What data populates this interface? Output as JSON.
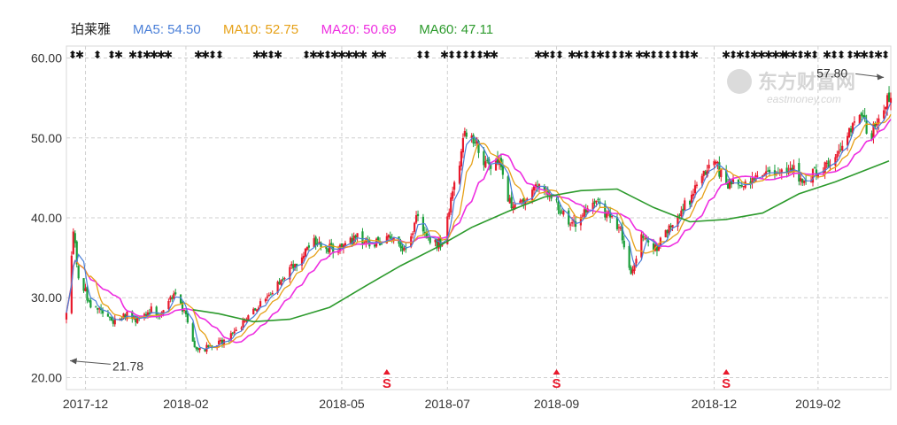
{
  "chart_data": {
    "type": "candlestick",
    "title": "",
    "stock_name": "珀莱雅",
    "legend": [
      {
        "key": "ma5",
        "label": "MA5: 54.50",
        "color": "#4a7fd8"
      },
      {
        "key": "ma10",
        "label": "MA10: 52.75",
        "color": "#e6a118"
      },
      {
        "key": "ma20",
        "label": "MA20: 50.69",
        "color": "#ee2ee0"
      },
      {
        "key": "ma60",
        "label": "MA60: 47.11",
        "color": "#2c9a2c"
      }
    ],
    "ylim": [
      18.5,
      61.5
    ],
    "yticks": [
      {
        "value": 60,
        "label": "60.00"
      },
      {
        "value": 50,
        "label": "50.00"
      },
      {
        "value": 40,
        "label": "40.00"
      },
      {
        "value": 30,
        "label": "30.00"
      },
      {
        "value": 20,
        "label": "20.00"
      }
    ],
    "xlim": [
      "2017-11-24",
      "2019-03-15"
    ],
    "xticks": [
      {
        "date": "2017-12-05",
        "label": "2017-12"
      },
      {
        "date": "2018-02-01",
        "label": "2018-02"
      },
      {
        "date": "2018-05-02",
        "label": "2018-05"
      },
      {
        "date": "2018-07-02",
        "label": "2018-07"
      },
      {
        "date": "2018-09-03",
        "label": "2018-09"
      },
      {
        "date": "2018-12-03",
        "label": "2018-12"
      },
      {
        "date": "2019-02-01",
        "label": "2019-02"
      }
    ],
    "close_anchors": [
      [
        "2017-11-24",
        28.5
      ],
      [
        "2017-11-28",
        38.0
      ],
      [
        "2017-12-01",
        33.0
      ],
      [
        "2017-12-08",
        29.0
      ],
      [
        "2017-12-15",
        28.0
      ],
      [
        "2017-12-22",
        27.0
      ],
      [
        "2017-12-29",
        27.8
      ],
      [
        "2018-01-05",
        27.2
      ],
      [
        "2018-01-12",
        28.5
      ],
      [
        "2018-01-19",
        28.0
      ],
      [
        "2018-01-26",
        30.8
      ],
      [
        "2018-02-02",
        27.0
      ],
      [
        "2018-02-07",
        23.2
      ],
      [
        "2018-02-12",
        23.6
      ],
      [
        "2018-02-26",
        25.0
      ],
      [
        "2018-03-09",
        27.5
      ],
      [
        "2018-03-23",
        31.0
      ],
      [
        "2018-04-04",
        34.0
      ],
      [
        "2018-04-16",
        36.8
      ],
      [
        "2018-04-27",
        36.0
      ],
      [
        "2018-05-10",
        37.5
      ],
      [
        "2018-05-22",
        36.8
      ],
      [
        "2018-06-01",
        37.5
      ],
      [
        "2018-06-08",
        35.8
      ],
      [
        "2018-06-15",
        40.5
      ],
      [
        "2018-06-22",
        36.5
      ],
      [
        "2018-06-29",
        37.0
      ],
      [
        "2018-07-06",
        44.0
      ],
      [
        "2018-07-12",
        50.5
      ],
      [
        "2018-07-18",
        49.5
      ],
      [
        "2018-07-25",
        46.5
      ],
      [
        "2018-08-01",
        47.2
      ],
      [
        "2018-08-08",
        41.0
      ],
      [
        "2018-08-15",
        42.5
      ],
      [
        "2018-08-22",
        44.5
      ],
      [
        "2018-08-29",
        43.5
      ],
      [
        "2018-09-05",
        41.2
      ],
      [
        "2018-09-12",
        39.0
      ],
      [
        "2018-09-19",
        40.8
      ],
      [
        "2018-09-26",
        41.8
      ],
      [
        "2018-10-10",
        38.5
      ],
      [
        "2018-10-16",
        32.8
      ],
      [
        "2018-10-22",
        37.5
      ],
      [
        "2018-10-29",
        35.8
      ],
      [
        "2018-11-05",
        38.2
      ],
      [
        "2018-11-12",
        40.5
      ],
      [
        "2018-11-19",
        42.2
      ],
      [
        "2018-11-26",
        45.2
      ],
      [
        "2018-12-03",
        47.2
      ],
      [
        "2018-12-10",
        44.0
      ],
      [
        "2018-12-17",
        44.8
      ],
      [
        "2018-12-24",
        44.2
      ],
      [
        "2019-01-02",
        46.5
      ],
      [
        "2019-01-09",
        45.0
      ],
      [
        "2019-01-16",
        46.5
      ],
      [
        "2019-01-23",
        44.2
      ],
      [
        "2019-01-30",
        45.8
      ],
      [
        "2019-02-11",
        47.0
      ],
      [
        "2019-02-18",
        50.0
      ],
      [
        "2019-02-25",
        52.5
      ],
      [
        "2019-03-04",
        50.5
      ],
      [
        "2019-03-11",
        53.5
      ],
      [
        "2019-03-14",
        55.0
      ]
    ],
    "ma60_anchors": [
      [
        "2018-02-05",
        28.5
      ],
      [
        "2018-02-20",
        28.0
      ],
      [
        "2018-03-12",
        27.0
      ],
      [
        "2018-04-02",
        27.3
      ],
      [
        "2018-04-25",
        28.8
      ],
      [
        "2018-05-16",
        31.5
      ],
      [
        "2018-06-05",
        34.0
      ],
      [
        "2018-06-25",
        36.2
      ],
      [
        "2018-07-16",
        38.8
      ],
      [
        "2018-08-06",
        40.8
      ],
      [
        "2018-08-27",
        42.6
      ],
      [
        "2018-09-17",
        43.4
      ],
      [
        "2018-10-08",
        43.6
      ],
      [
        "2018-10-29",
        41.3
      ],
      [
        "2018-11-19",
        39.5
      ],
      [
        "2018-12-10",
        39.8
      ],
      [
        "2018-12-31",
        40.6
      ],
      [
        "2019-01-21",
        43.0
      ],
      [
        "2019-02-11",
        44.5
      ],
      [
        "2019-03-14",
        47.11
      ]
    ],
    "annotations": [
      {
        "label": "57.80",
        "date": "2019-03-12",
        "value": 57.8,
        "side": "left-of-point"
      },
      {
        "label": "21.78",
        "date": "2017-11-24",
        "value": 21.78,
        "side": "right-of-point"
      }
    ],
    "event_markers": [
      {
        "date": "2018-05-28",
        "label": "S"
      },
      {
        "date": "2018-09-03",
        "label": "S"
      },
      {
        "date": "2018-12-10",
        "label": "S"
      }
    ],
    "watermark": {
      "brand_cn": "东方财富网",
      "brand_en": "eastmoney.com"
    },
    "up_color": "#e8192c",
    "down_color": "#1a9e3a",
    "grid": true
  }
}
